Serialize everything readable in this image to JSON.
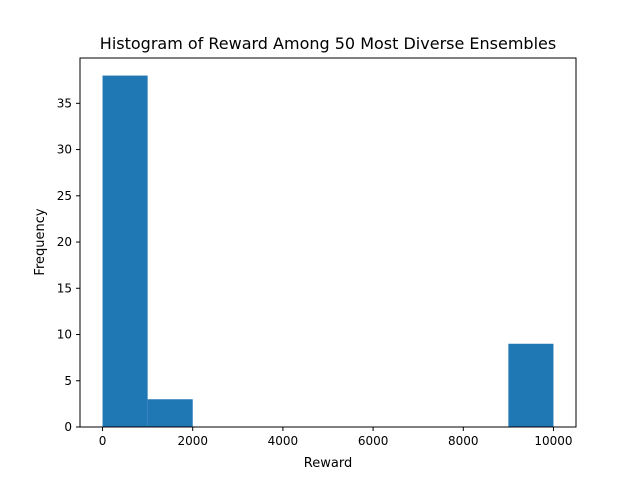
{
  "chart_data": {
    "type": "bar",
    "title": "Histogram of Reward Among 50 Most Diverse Ensembles",
    "xlabel": "Reward",
    "ylabel": "Frequency",
    "bins": [
      {
        "start": 0,
        "end": 1000,
        "value": 38
      },
      {
        "start": 1000,
        "end": 2000,
        "value": 3
      },
      {
        "start": 2000,
        "end": 3000,
        "value": 0
      },
      {
        "start": 3000,
        "end": 4000,
        "value": 0
      },
      {
        "start": 4000,
        "end": 5000,
        "value": 0
      },
      {
        "start": 5000,
        "end": 6000,
        "value": 0
      },
      {
        "start": 6000,
        "end": 7000,
        "value": 0
      },
      {
        "start": 7000,
        "end": 8000,
        "value": 0
      },
      {
        "start": 8000,
        "end": 9000,
        "value": 0
      },
      {
        "start": 9000,
        "end": 10000,
        "value": 9
      }
    ],
    "xlim": [
      -500,
      10500
    ],
    "ylim": [
      0,
      39.9
    ],
    "xticks": [
      {
        "value": 0,
        "label": "0"
      },
      {
        "value": 2000,
        "label": "2000"
      },
      {
        "value": 4000,
        "label": "4000"
      },
      {
        "value": 6000,
        "label": "6000"
      },
      {
        "value": 8000,
        "label": "8000"
      },
      {
        "value": 10000,
        "label": "10000"
      }
    ],
    "yticks": [
      {
        "value": 0,
        "label": "0"
      },
      {
        "value": 5,
        "label": "5"
      },
      {
        "value": 10,
        "label": "10"
      },
      {
        "value": 15,
        "label": "15"
      },
      {
        "value": 20,
        "label": "20"
      },
      {
        "value": 25,
        "label": "25"
      },
      {
        "value": 30,
        "label": "30"
      },
      {
        "value": 35,
        "label": "35"
      }
    ],
    "bar_color": "#1f77b4",
    "grid": false,
    "legend": "none"
  }
}
